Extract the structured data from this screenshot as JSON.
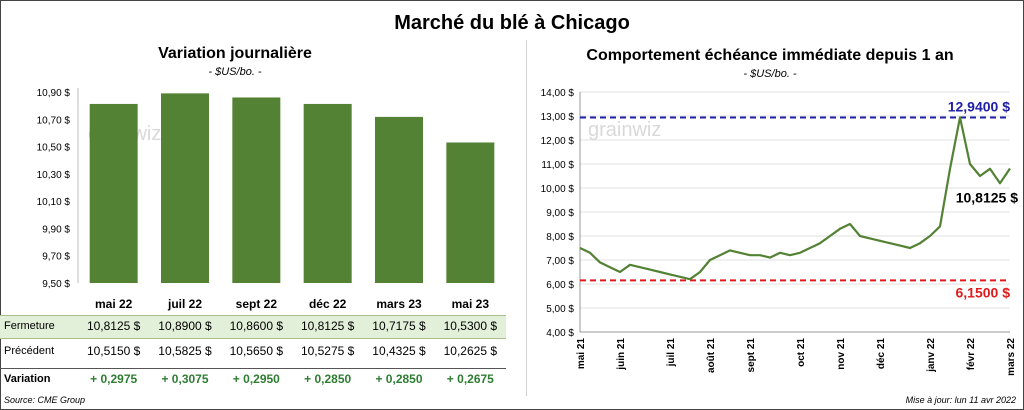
{
  "title": "Marché du blé à Chicago",
  "left": {
    "title": "Variation  journalière",
    "subtitle": "- $US/bo. -"
  },
  "right": {
    "title": "Comportement  échéance immédiate depuis 1 an",
    "subtitle": "- $US/bo. -"
  },
  "table": {
    "row_labels": [
      "Fermeture",
      "Précédent",
      "Variation"
    ],
    "fermeture": [
      "10,8125  $",
      "10,8900  $",
      "10,8600  $",
      "10,8125  $",
      "10,7175  $",
      "10,5300  $"
    ],
    "precedent": [
      "10,5150  $",
      "10,5825  $",
      "10,5650  $",
      "10,5275  $",
      "10,4325  $",
      "10,2625  $"
    ],
    "variation": [
      "+ 0,2975",
      "+ 0,3075",
      "+ 0,2950",
      "+ 0,2850",
      "+ 0,2850",
      "+ 0,2675"
    ]
  },
  "watermark": "grainwiz",
  "source": "Source: CME Group",
  "updated": "Mise à jour: lun 11 avr 2022",
  "colors": {
    "bar": "#548235",
    "line": "#548235",
    "high": "#1f1fa8",
    "low": "#e01b1b",
    "table_bg": "#e2efd9",
    "positive": "#2e7d32"
  },
  "chart_data": [
    {
      "type": "bar",
      "categories": [
        "mai 22",
        "juil 22",
        "sept 22",
        "déc 22",
        "mars 23",
        "mai 23"
      ],
      "values": [
        10.8125,
        10.89,
        10.86,
        10.8125,
        10.7175,
        10.53
      ],
      "ylim": [
        9.5,
        10.9
      ],
      "yticks": [
        "9,50 $",
        "9,70 $",
        "9,90 $",
        "10,10 $",
        "10,30 $",
        "10,50 $",
        "10,70 $",
        "10,90 $"
      ],
      "grid": false
    },
    {
      "type": "line",
      "x_labels": [
        "mai 21",
        "juin 21",
        "juil 21",
        "août 21",
        "sept 21",
        "oct 21",
        "nov 21",
        "déc 21",
        "janv 22",
        "févr 22",
        "mars 22"
      ],
      "x_label_weeks": [
        0,
        4,
        9,
        13,
        17,
        22,
        26,
        30,
        35,
        39,
        43
      ],
      "ylim": [
        4.0,
        14.0
      ],
      "yticks": [
        "4,00 $",
        "5,00 $",
        "6,00 $",
        "7,00 $",
        "8,00 $",
        "9,00 $",
        "10,00 $",
        "11,00 $",
        "12,00 $",
        "13,00 $",
        "14,00 $"
      ],
      "grid": true,
      "high": {
        "value": 12.94,
        "label": "12,9400 $"
      },
      "low": {
        "value": 6.15,
        "label": "6,1500 $"
      },
      "last": {
        "value": 10.8125,
        "label": "10,8125 $"
      },
      "series": [
        {
          "values": [
            7.5,
            7.3,
            6.9,
            6.7,
            6.5,
            6.8,
            6.7,
            6.6,
            6.5,
            6.4,
            6.3,
            6.2,
            6.5,
            7.0,
            7.2,
            7.4,
            7.3,
            7.2,
            7.2,
            7.1,
            7.3,
            7.2,
            7.3,
            7.5,
            7.7,
            8.0,
            8.3,
            8.5,
            8.0,
            7.9,
            7.8,
            7.7,
            7.6,
            7.5,
            7.7,
            8.0,
            8.4,
            10.8,
            12.94,
            11.0,
            10.5,
            10.8,
            10.2,
            10.8125
          ]
        }
      ]
    }
  ]
}
